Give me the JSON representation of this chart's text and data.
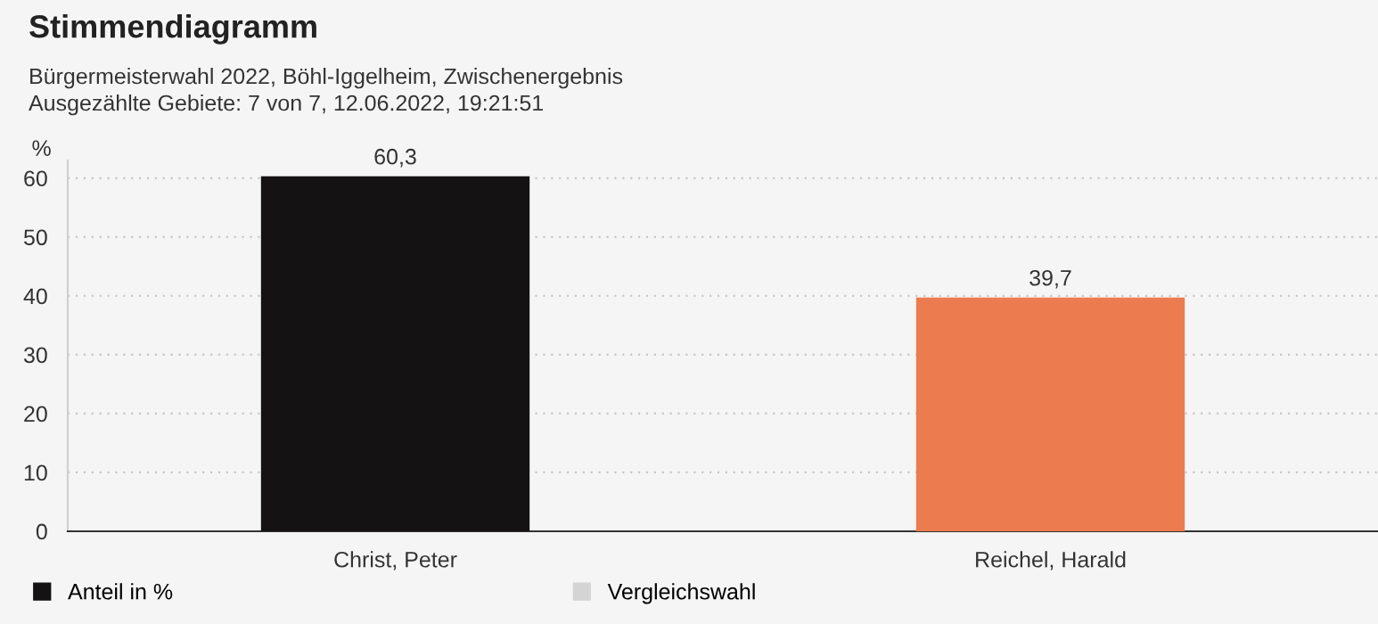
{
  "chart_data": {
    "type": "bar",
    "title": "Stimmendiagramm",
    "subtitle": "Bürgermeisterwahl 2022, Böhl-Iggelheim, Zwischenergebnis",
    "annotations": [
      "Ausgezählte Gebiete: 7 von 7, 12.06.2022, 19:21:51"
    ],
    "ylabel": "%",
    "categories": [
      "Christ, Peter",
      "Reichel, Harald"
    ],
    "series": [
      {
        "name": "Anteil in %",
        "color": "#141213",
        "colors": [
          "#141213",
          "#ec7c4f"
        ],
        "values": [
          60.3,
          39.7
        ],
        "value_labels": [
          "60,3",
          "39,7"
        ]
      },
      {
        "name": "Vergleichswahl",
        "color": "#d4d4d4",
        "values": [
          null,
          null
        ]
      }
    ],
    "ylim": [
      0,
      63
    ],
    "yticks": [
      0,
      10,
      20,
      30,
      40,
      50,
      60
    ],
    "grid": "y",
    "legend": "bottom"
  }
}
